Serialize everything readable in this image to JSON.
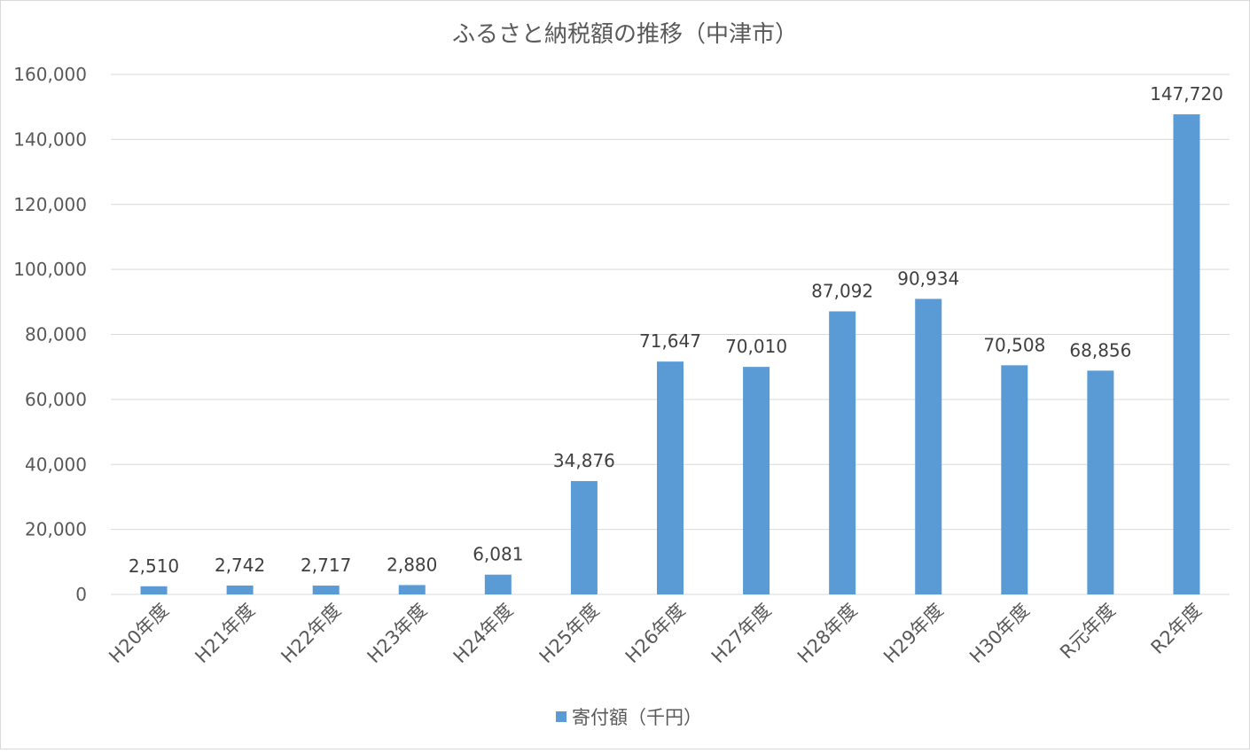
{
  "chart_data": {
    "type": "bar",
    "title": "ふるさと納税額の推移（中津市）",
    "categories": [
      "H20年度",
      "H21年度",
      "H22年度",
      "H23年度",
      "H24年度",
      "H25年度",
      "H26年度",
      "H27年度",
      "H28年度",
      "H29年度",
      "H30年度",
      "R元年度",
      "R2年度"
    ],
    "series": [
      {
        "name": "寄付額（千円）",
        "values": [
          2510,
          2742,
          2717,
          2880,
          6081,
          34876,
          71647,
          70010,
          87092,
          90934,
          70508,
          68856,
          147720
        ],
        "labels": [
          "2,510",
          "2,742",
          "2,717",
          "2,880",
          "6,081",
          "34,876",
          "71,647",
          "70,010",
          "87,092",
          "90,934",
          "70,508",
          "68,856",
          "147,720"
        ],
        "color": "#5b9bd5"
      }
    ],
    "ylim": [
      0,
      160000
    ],
    "yticks": [
      0,
      20000,
      40000,
      60000,
      80000,
      100000,
      120000,
      140000,
      160000
    ],
    "ytick_labels": [
      "0",
      "20,000",
      "40,000",
      "60,000",
      "80,000",
      "100,000",
      "120,000",
      "140,000",
      "160,000"
    ],
    "xlabel": "",
    "ylabel": "",
    "grid": true,
    "legend_position": "bottom"
  }
}
